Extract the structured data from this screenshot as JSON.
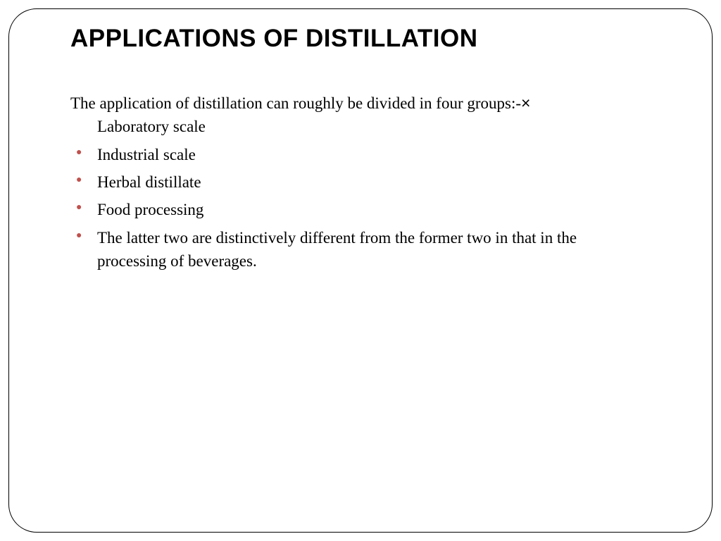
{
  "slide": {
    "title": "APPLICATIONS OF DISTILLATION",
    "intro_text": "The application of distillation can roughly be divided in four groups:-",
    "intro_symbol": "×",
    "intro_continuation": "Laboratory scale",
    "bullets": [
      "Industrial scale",
      "Herbal distillate",
      "Food processing",
      "The latter two are distinctively different from the former two in that in the processing of beverages."
    ],
    "last_bullet_line1": "The latter two are distinctively different from the former two in that in the",
    "last_bullet_cursor": "",
    "last_bullet_line2": "processing of beverages."
  },
  "style": {
    "background_color": "#ffffff",
    "border_color": "#000000",
    "border_radius": 40,
    "title_font": "Arial",
    "title_fontsize": 35,
    "title_color": "#000000",
    "body_font": "Georgia",
    "body_fontsize": 23,
    "body_color": "#000000",
    "bullet_color": "#c0504d",
    "bullet_size": 14
  }
}
